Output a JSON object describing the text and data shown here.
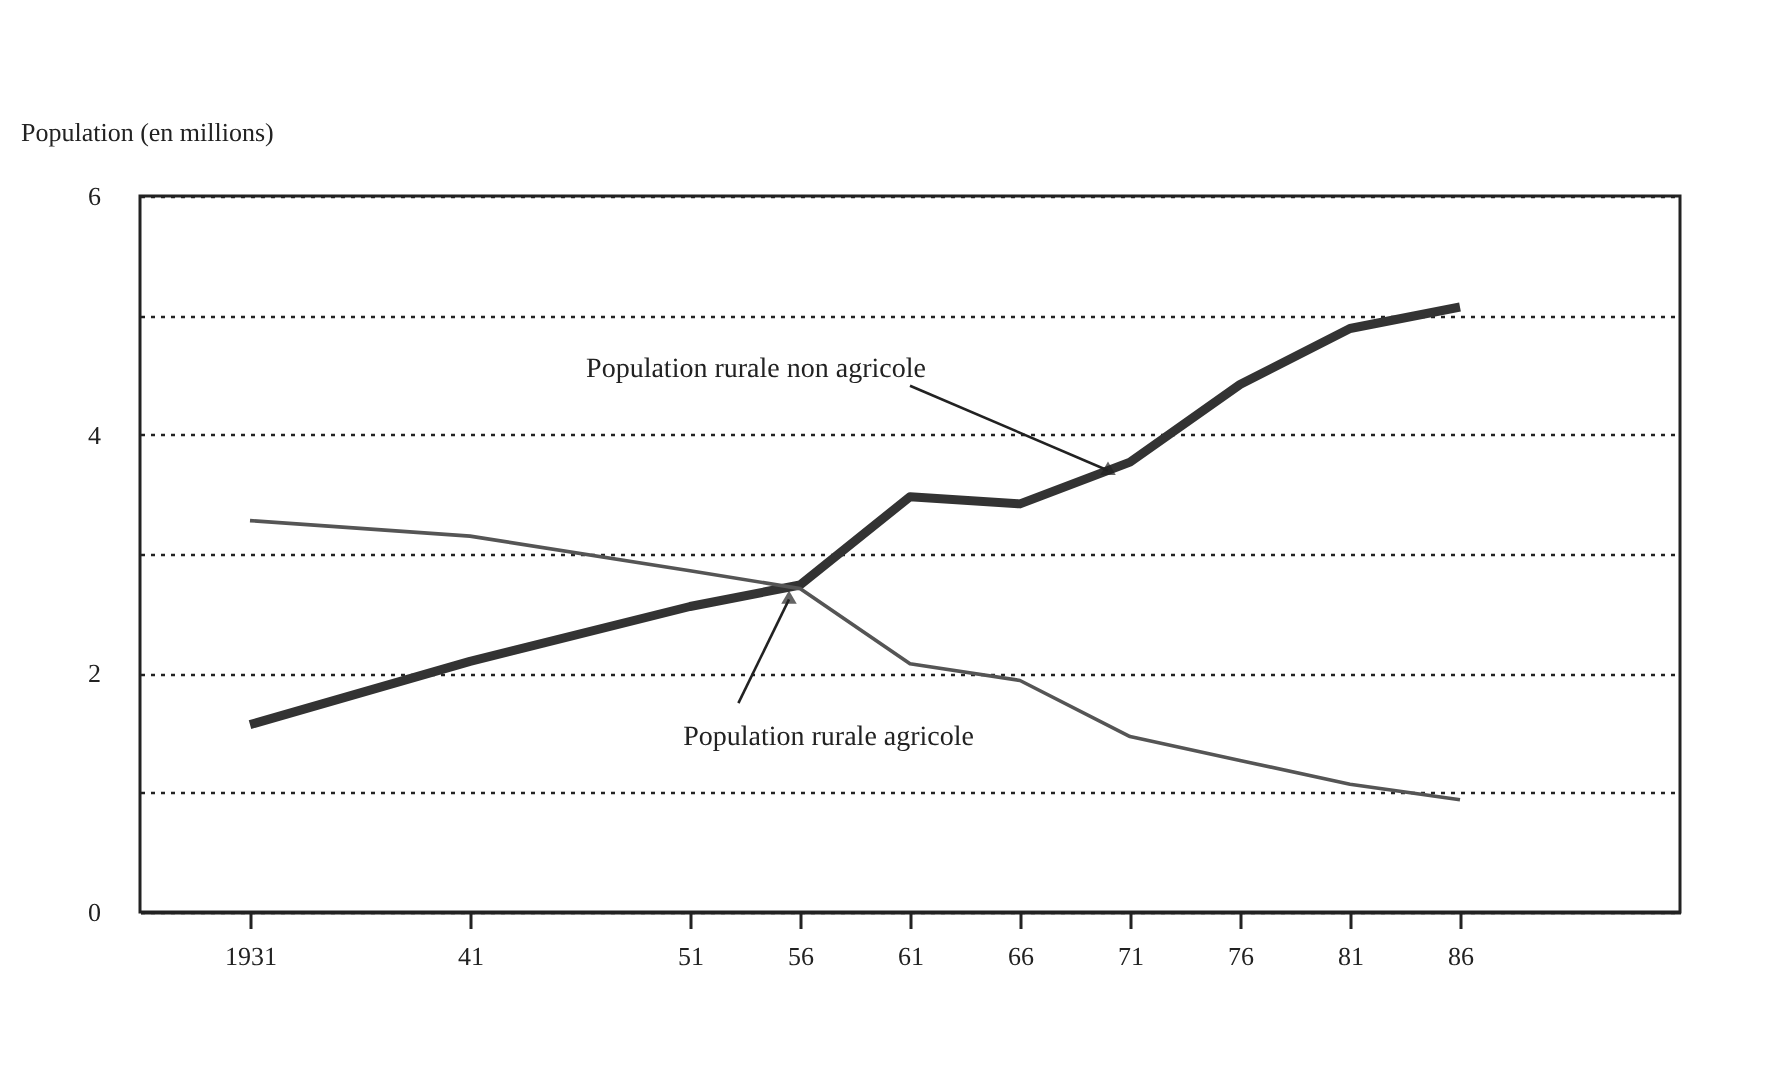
{
  "chart_data": {
    "type": "line",
    "ylabel": "Population (en millions)",
    "x": [
      1931,
      1941,
      1951,
      1956,
      1961,
      1966,
      1971,
      1976,
      1981,
      1986
    ],
    "xlim": [
      1926,
      1996
    ],
    "xticks": [
      1931,
      {
        "value": 1941,
        "label": "41"
      },
      {
        "value": 1951,
        "label": "51"
      },
      {
        "value": 1956,
        "label": "56"
      },
      {
        "value": 1961,
        "label": "61"
      },
      {
        "value": 1966,
        "label": "66"
      },
      {
        "value": 1971,
        "label": "71"
      },
      {
        "value": 1976,
        "label": "76"
      },
      {
        "value": 1981,
        "label": "81"
      },
      {
        "value": 1986,
        "label": "86"
      }
    ],
    "ylim": [
      0,
      6
    ],
    "yticks": [
      0,
      {
        "value": 1,
        "label": null
      },
      2,
      {
        "value": 3,
        "label": null
      },
      4,
      {
        "value": 5,
        "label": null
      },
      6
    ],
    "grid": "y",
    "marker": "none",
    "line_style": "solid",
    "series": [
      {
        "color": "#333333",
        "values": [
          1.57,
          2.1,
          2.56,
          2.74,
          3.48,
          3.42,
          3.77,
          4.42,
          4.89,
          5.07
        ]
      },
      {
        "color": "#555555",
        "values": [
          3.28,
          3.15,
          2.86,
          2.71,
          2.08,
          1.94,
          1.47,
          1.27,
          1.07,
          0.94
        ]
      }
    ],
    "annotations": [
      {
        "text": "Population rurale non agricole",
        "x": 1970,
        "y": 3.7
      },
      {
        "text": "Population rurale agricole",
        "x": 1955.5,
        "y": 2.62
      }
    ]
  }
}
